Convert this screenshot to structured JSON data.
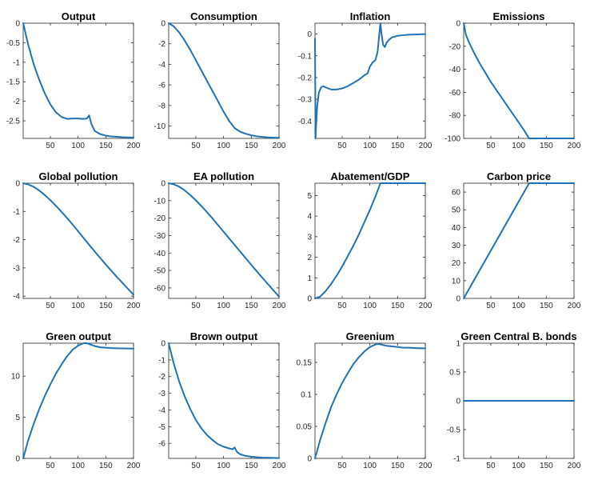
{
  "figure": {
    "line_color": "#2171b5"
  },
  "chart_data": [
    {
      "type": "line",
      "title": "Output",
      "xlim": [
        1,
        200
      ],
      "ylim": [
        -2.95,
        0
      ],
      "xticks": [
        50,
        100,
        150,
        200
      ],
      "yticks": [
        0,
        -0.5,
        -1,
        -1.5,
        -2,
        -2.5
      ],
      "x": [
        1,
        10,
        20,
        30,
        40,
        50,
        60,
        70,
        80,
        90,
        100,
        110,
        116,
        120,
        124,
        130,
        140,
        150,
        160,
        170,
        180,
        190,
        200
      ],
      "y": [
        0,
        -0.55,
        -1.05,
        -1.45,
        -1.8,
        -2.08,
        -2.28,
        -2.4,
        -2.45,
        -2.44,
        -2.44,
        -2.45,
        -2.44,
        -2.36,
        -2.58,
        -2.76,
        -2.84,
        -2.88,
        -2.9,
        -2.91,
        -2.92,
        -2.925,
        -2.93
      ]
    },
    {
      "type": "line",
      "title": "Consumption",
      "xlim": [
        1,
        200
      ],
      "ylim": [
        -11.2,
        0
      ],
      "xticks": [
        50,
        100,
        150,
        200
      ],
      "yticks": [
        0,
        -2,
        -4,
        -6,
        -8,
        -10
      ],
      "x": [
        1,
        10,
        20,
        30,
        40,
        50,
        60,
        70,
        80,
        90,
        100,
        110,
        120,
        130,
        140,
        150,
        160,
        170,
        180,
        190,
        200
      ],
      "y": [
        0,
        -0.3,
        -0.9,
        -1.7,
        -2.6,
        -3.6,
        -4.6,
        -5.6,
        -6.6,
        -7.6,
        -8.6,
        -9.5,
        -10.2,
        -10.55,
        -10.75,
        -10.9,
        -11.0,
        -11.05,
        -11.1,
        -11.12,
        -11.15
      ]
    },
    {
      "type": "line",
      "title": "Inflation",
      "xlim": [
        1,
        200
      ],
      "ylim": [
        -0.48,
        0.05
      ],
      "xticks": [
        50,
        100,
        150,
        200
      ],
      "yticks": [
        0,
        -0.1,
        -0.2,
        -0.3,
        -0.4
      ],
      "x": [
        1,
        2,
        3,
        5,
        8,
        12,
        16,
        20,
        30,
        40,
        50,
        60,
        70,
        80,
        90,
        96,
        100,
        105,
        110,
        114,
        117,
        119,
        121,
        124,
        127,
        130,
        135,
        140,
        150,
        160,
        170,
        180,
        200
      ],
      "y": [
        -0.02,
        -0.48,
        -0.42,
        -0.33,
        -0.27,
        -0.245,
        -0.24,
        -0.245,
        -0.255,
        -0.255,
        -0.25,
        -0.24,
        -0.225,
        -0.21,
        -0.19,
        -0.18,
        -0.15,
        -0.13,
        -0.12,
        -0.08,
        0.0,
        0.05,
        0.0,
        -0.05,
        -0.06,
        -0.04,
        -0.025,
        -0.015,
        -0.008,
        -0.005,
        -0.003,
        -0.002,
        0.0
      ]
    },
    {
      "type": "line",
      "title": "Emissions",
      "xlim": [
        1,
        200
      ],
      "ylim": [
        -100,
        0
      ],
      "xticks": [
        50,
        100,
        150,
        200
      ],
      "yticks": [
        0,
        -20,
        -40,
        -60,
        -80,
        -100
      ],
      "x": [
        1,
        5,
        10,
        20,
        30,
        40,
        50,
        60,
        70,
        80,
        90,
        100,
        110,
        119,
        130,
        150,
        170,
        200
      ],
      "y": [
        0,
        -10,
        -16,
        -26,
        -35,
        -43,
        -51,
        -58,
        -65,
        -72,
        -79,
        -86,
        -93,
        -100,
        -100,
        -100,
        -100,
        -100
      ]
    },
    {
      "type": "line",
      "title": "Global pollution",
      "xlim": [
        1,
        200
      ],
      "ylim": [
        -4.08,
        0
      ],
      "xticks": [
        50,
        100,
        150,
        200
      ],
      "yticks": [
        0,
        -1,
        -2,
        -3,
        -4
      ],
      "x": [
        1,
        10,
        20,
        30,
        40,
        50,
        60,
        70,
        80,
        90,
        100,
        110,
        120,
        130,
        140,
        150,
        160,
        170,
        180,
        190,
        200
      ],
      "y": [
        0,
        -0.04,
        -0.13,
        -0.26,
        -0.42,
        -0.6,
        -0.8,
        -1.01,
        -1.23,
        -1.46,
        -1.7,
        -1.94,
        -2.18,
        -2.42,
        -2.65,
        -2.88,
        -3.1,
        -3.32,
        -3.53,
        -3.74,
        -3.95
      ]
    },
    {
      "type": "line",
      "title": "EA pollution",
      "xlim": [
        1,
        200
      ],
      "ylim": [
        -66,
        0
      ],
      "xticks": [
        50,
        100,
        150,
        200
      ],
      "yticks": [
        0,
        -10,
        -20,
        -30,
        -40,
        -50,
        -60
      ],
      "x": [
        1,
        10,
        20,
        30,
        40,
        50,
        60,
        70,
        80,
        90,
        100,
        110,
        120,
        130,
        140,
        150,
        160,
        170,
        180,
        190,
        200
      ],
      "y": [
        0,
        -0.6,
        -2,
        -4.1,
        -6.8,
        -9.8,
        -13.1,
        -16.6,
        -20.2,
        -24,
        -27.8,
        -31.6,
        -35.4,
        -39.2,
        -43,
        -46.8,
        -50.5,
        -54.2,
        -57.8,
        -61.4,
        -65
      ]
    },
    {
      "type": "line",
      "title": "Abatement/GDP",
      "xlim": [
        1,
        200
      ],
      "ylim": [
        0,
        5.6
      ],
      "xticks": [
        50,
        100,
        150,
        200
      ],
      "yticks": [
        0,
        1,
        2,
        3,
        4,
        5
      ],
      "x": [
        1,
        10,
        20,
        30,
        40,
        50,
        60,
        70,
        80,
        90,
        100,
        110,
        119,
        130,
        150,
        170,
        200
      ],
      "y": [
        0,
        0.08,
        0.35,
        0.7,
        1.1,
        1.55,
        2.05,
        2.55,
        3.1,
        3.7,
        4.3,
        4.95,
        5.6,
        5.6,
        5.6,
        5.6,
        5.6
      ]
    },
    {
      "type": "line",
      "title": "Carbon price",
      "xlim": [
        1,
        200
      ],
      "ylim": [
        0,
        65
      ],
      "xticks": [
        50,
        100,
        150,
        200
      ],
      "yticks": [
        0,
        10,
        20,
        30,
        40,
        50,
        60
      ],
      "x": [
        1,
        119,
        130,
        150,
        170,
        200
      ],
      "y": [
        0,
        65,
        65,
        65,
        65,
        65
      ]
    },
    {
      "type": "line",
      "title": "Green output",
      "xlim": [
        1,
        200
      ],
      "ylim": [
        0,
        14
      ],
      "xticks": [
        50,
        100,
        150,
        200
      ],
      "yticks": [
        0,
        5,
        10
      ],
      "x": [
        1,
        10,
        20,
        30,
        40,
        50,
        60,
        70,
        80,
        90,
        100,
        110,
        115,
        120,
        130,
        140,
        150,
        160,
        170,
        180,
        190,
        200
      ],
      "y": [
        0,
        2.2,
        4.2,
        6,
        7.6,
        9,
        10.3,
        11.4,
        12.4,
        13.2,
        13.7,
        14,
        14,
        13.9,
        13.65,
        13.5,
        13.45,
        13.4,
        13.38,
        13.37,
        13.36,
        13.35
      ]
    },
    {
      "type": "line",
      "title": "Brown output",
      "xlim": [
        1,
        200
      ],
      "ylim": [
        -6.9,
        0
      ],
      "xticks": [
        50,
        100,
        150,
        200
      ],
      "yticks": [
        0,
        -1,
        -2,
        -3,
        -4,
        -5,
        -6
      ],
      "x": [
        1,
        10,
        20,
        30,
        40,
        50,
        60,
        70,
        80,
        90,
        100,
        110,
        116,
        120,
        124,
        130,
        140,
        150,
        160,
        170,
        180,
        190,
        200
      ],
      "y": [
        0,
        -1.2,
        -2.3,
        -3.2,
        -3.95,
        -4.6,
        -5.1,
        -5.5,
        -5.8,
        -6.05,
        -6.2,
        -6.3,
        -6.35,
        -6.25,
        -6.5,
        -6.65,
        -6.75,
        -6.8,
        -6.83,
        -6.85,
        -6.86,
        -6.87,
        -6.88
      ]
    },
    {
      "type": "line",
      "title": "Greenium",
      "xlim": [
        1,
        200
      ],
      "ylim": [
        0,
        0.18
      ],
      "xticks": [
        50,
        100,
        150,
        200
      ],
      "yticks": [
        0,
        0.05,
        0.1,
        0.15
      ],
      "yticklabels": [
        "0",
        "0.05",
        "0.1",
        "0.15"
      ],
      "x": [
        1,
        10,
        20,
        30,
        40,
        50,
        60,
        70,
        80,
        90,
        100,
        110,
        115,
        120,
        130,
        140,
        150,
        160,
        170,
        180,
        190,
        200
      ],
      "y": [
        0,
        0.028,
        0.055,
        0.08,
        0.1,
        0.118,
        0.133,
        0.147,
        0.158,
        0.167,
        0.174,
        0.178,
        0.179,
        0.178,
        0.176,
        0.175,
        0.174,
        0.173,
        0.173,
        0.1725,
        0.172,
        0.172
      ]
    },
    {
      "type": "line",
      "title": "Green Central B. bonds",
      "xlim": [
        1,
        200
      ],
      "ylim": [
        -1,
        1
      ],
      "xticks": [
        50,
        100,
        150,
        200
      ],
      "yticks": [
        1,
        0.5,
        0,
        -0.5,
        -1
      ],
      "x": [
        1,
        200
      ],
      "y": [
        0,
        0
      ]
    }
  ]
}
